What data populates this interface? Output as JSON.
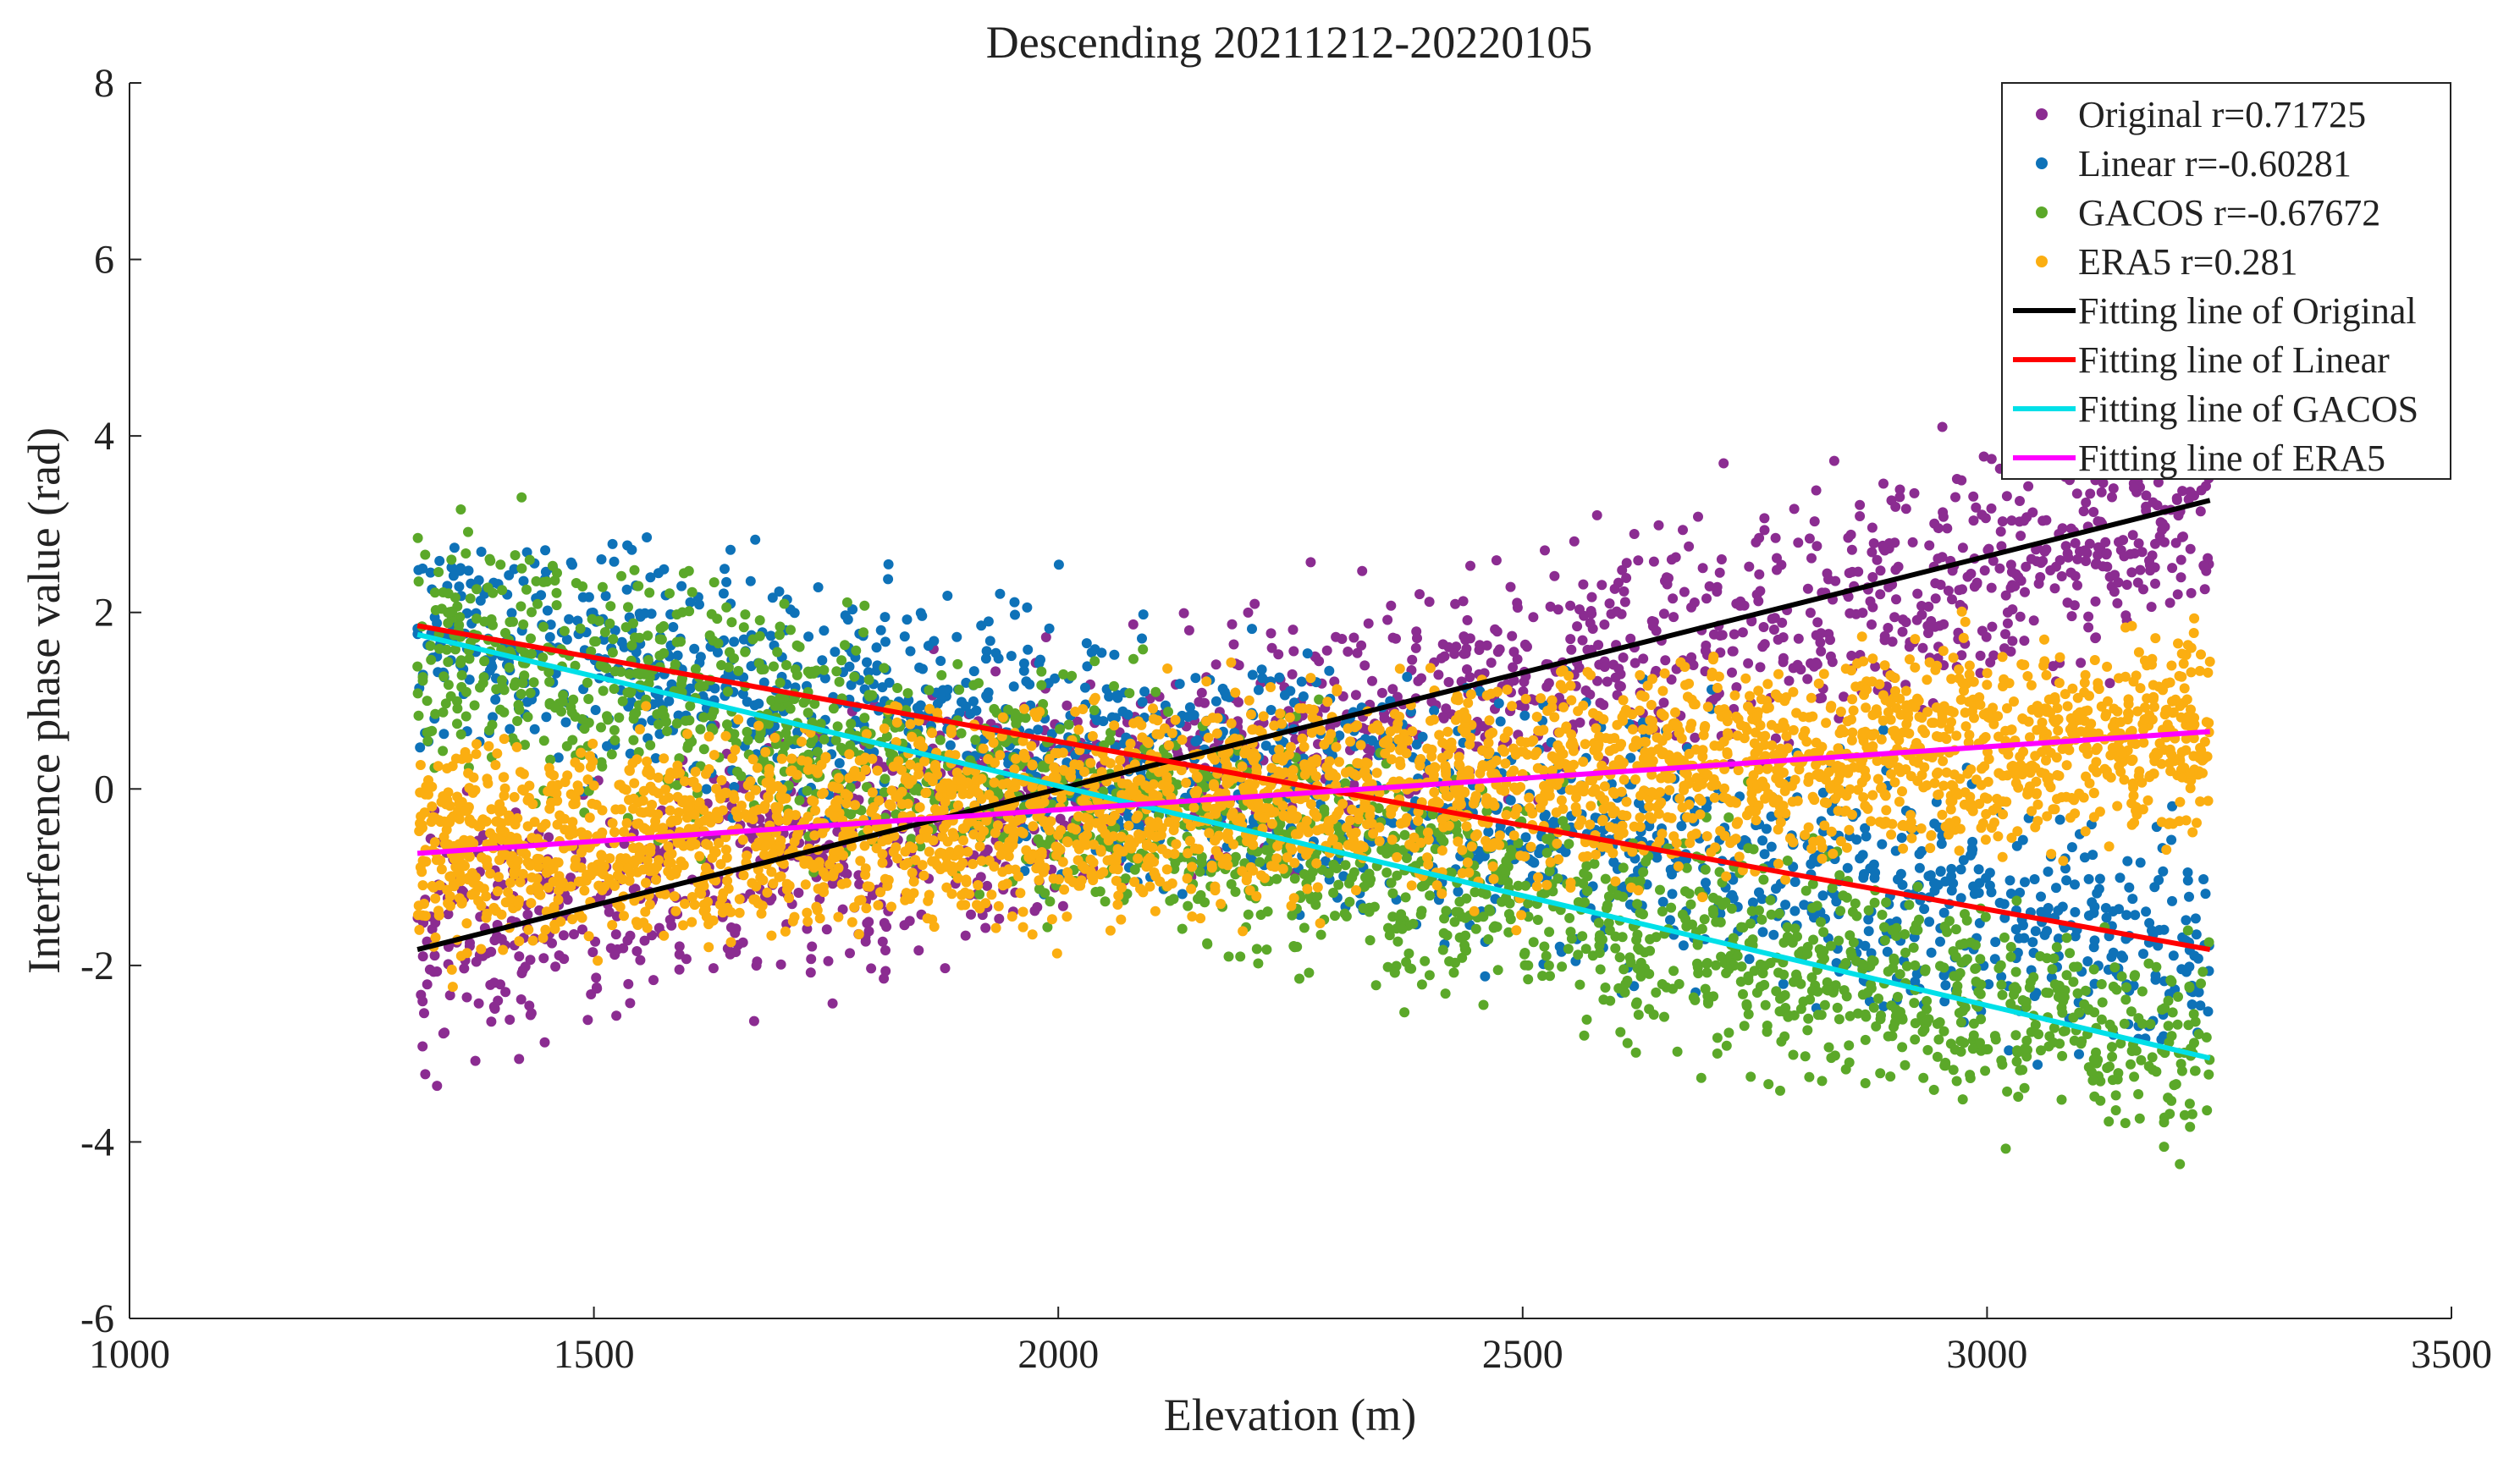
{
  "chart_data": {
    "type": "scatter",
    "title": "Descending 20211212-20220105",
    "xlabel": "Elevation (m)",
    "ylabel": "Interference phase value (rad)",
    "xlim": [
      1000,
      3500
    ],
    "ylim": [
      -6,
      8
    ],
    "xticks": [
      1000,
      1500,
      2000,
      2500,
      3000,
      3500
    ],
    "yticks": [
      -6,
      -4,
      -2,
      0,
      2,
      4,
      6,
      8
    ],
    "xtick_labels": [
      "1000",
      "1500",
      "2000",
      "2500",
      "3000",
      "3500"
    ],
    "ytick_labels": [
      "-6",
      "-4",
      "-2",
      "0",
      "2",
      "4",
      "6",
      "8"
    ],
    "grid": false,
    "legend_position": "top-right",
    "scatter_series": [
      {
        "name": "Original",
        "label": "Original  r=0.71725",
        "color": "#8B2C91",
        "x_range": [
          1310,
          3240
        ],
        "fit": {
          "slope": 0.0026,
          "intercept": -5.23
        },
        "spread": 0.95,
        "approx_points": 1600
      },
      {
        "name": "Linear",
        "label": "Linear     r=-0.60281",
        "color": "#0E72B8",
        "x_range": [
          1310,
          3240
        ],
        "fit": {
          "slope": -0.0019,
          "intercept": 4.34
        },
        "spread": 0.95,
        "approx_points": 1600
      },
      {
        "name": "GACOS",
        "label": "GACOS  r=-0.67672",
        "color": "#5BA829",
        "x_range": [
          1310,
          3240
        ],
        "fit": {
          "slope": -0.0025,
          "intercept": 5.0
        },
        "spread": 0.9,
        "approx_points": 1900
      },
      {
        "name": "ERA5",
        "label": "ERA5      r=0.281",
        "color": "#FBAE11",
        "x_range": [
          1310,
          3240
        ],
        "fit": {
          "slope": 0.00072,
          "intercept": -1.68
        },
        "spread": 0.8,
        "approx_points": 3200
      }
    ],
    "fit_lines": [
      {
        "name": "Fitting line of Original",
        "color": "#000000",
        "x": [
          1310,
          3240
        ],
        "y": [
          -1.82,
          3.27
        ]
      },
      {
        "name": "Fitting line of Linear",
        "color": "#FF0000",
        "x": [
          1310,
          3240
        ],
        "y": [
          1.85,
          -1.82
        ]
      },
      {
        "name": "Fitting line of GACOS",
        "color": "#00E0E8",
        "x": [
          1310,
          3240
        ],
        "y": [
          1.75,
          -3.05
        ]
      },
      {
        "name": "Fitting line of ERA5",
        "color": "#FF00FF",
        "x": [
          1310,
          3240
        ],
        "y": [
          -0.73,
          0.65
        ]
      }
    ]
  },
  "legend": {
    "items": [
      {
        "label": "Original  r=0.71725",
        "kind": "marker",
        "color": "#8B2C91"
      },
      {
        "label": "Linear     r=-0.60281",
        "kind": "marker",
        "color": "#0E72B8"
      },
      {
        "label": "GACOS  r=-0.67672",
        "kind": "marker",
        "color": "#5BA829"
      },
      {
        "label": "ERA5      r=0.281",
        "kind": "marker",
        "color": "#FBAE11"
      },
      {
        "label": "Fitting line of Original",
        "kind": "line",
        "color": "#000000"
      },
      {
        "label": "Fitting line of Linear",
        "kind": "line",
        "color": "#FF0000"
      },
      {
        "label": "Fitting line of GACOS",
        "kind": "line",
        "color": "#00E0E8"
      },
      {
        "label": "Fitting line of ERA5",
        "kind": "line",
        "color": "#FF00FF"
      }
    ]
  }
}
